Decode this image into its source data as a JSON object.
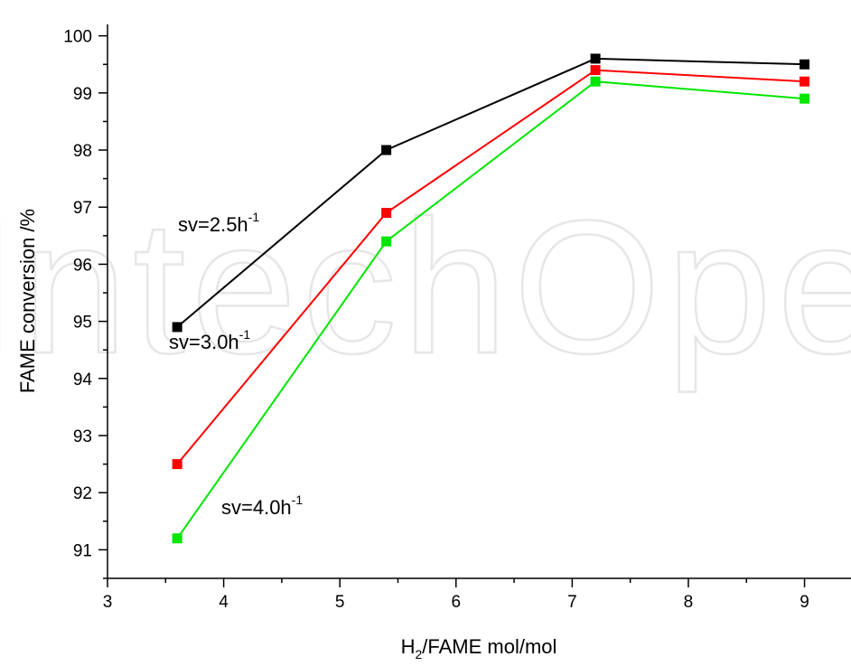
{
  "watermark": "IntechOpen",
  "chart_data": {
    "type": "line",
    "xlabel": {
      "main": "H",
      "sub": "2",
      "rest": "/FAME  mol/mol"
    },
    "ylabel": "FAME  conversion /%",
    "xlim": [
      3,
      9.4
    ],
    "ylim": [
      90.5,
      100.2
    ],
    "xticks": [
      "3",
      "4",
      "5",
      "6",
      "7",
      "8",
      "9"
    ],
    "yticks": [
      "91",
      "92",
      "93",
      "94",
      "95",
      "96",
      "97",
      "98",
      "99",
      "100"
    ],
    "x": [
      3.6,
      5.4,
      7.2,
      9
    ],
    "series": [
      {
        "name": "sv=2.5h-1",
        "label_main": "sv=2.5h",
        "label_sup": "-1",
        "color": "#000000",
        "values": [
          94.9,
          98.0,
          99.6,
          99.5
        ]
      },
      {
        "name": "sv=3.0h-1",
        "label_main": "sv=3.0h",
        "label_sup": "-1",
        "color": "#ff0000",
        "values": [
          92.5,
          96.9,
          99.4,
          99.2
        ]
      },
      {
        "name": "sv=4.0h-1",
        "label_main": "sv=4.0h",
        "label_sup": "-1",
        "color": "#00e600",
        "values": [
          91.2,
          96.4,
          99.2,
          98.9
        ]
      }
    ],
    "grid": false,
    "marker": "square"
  }
}
